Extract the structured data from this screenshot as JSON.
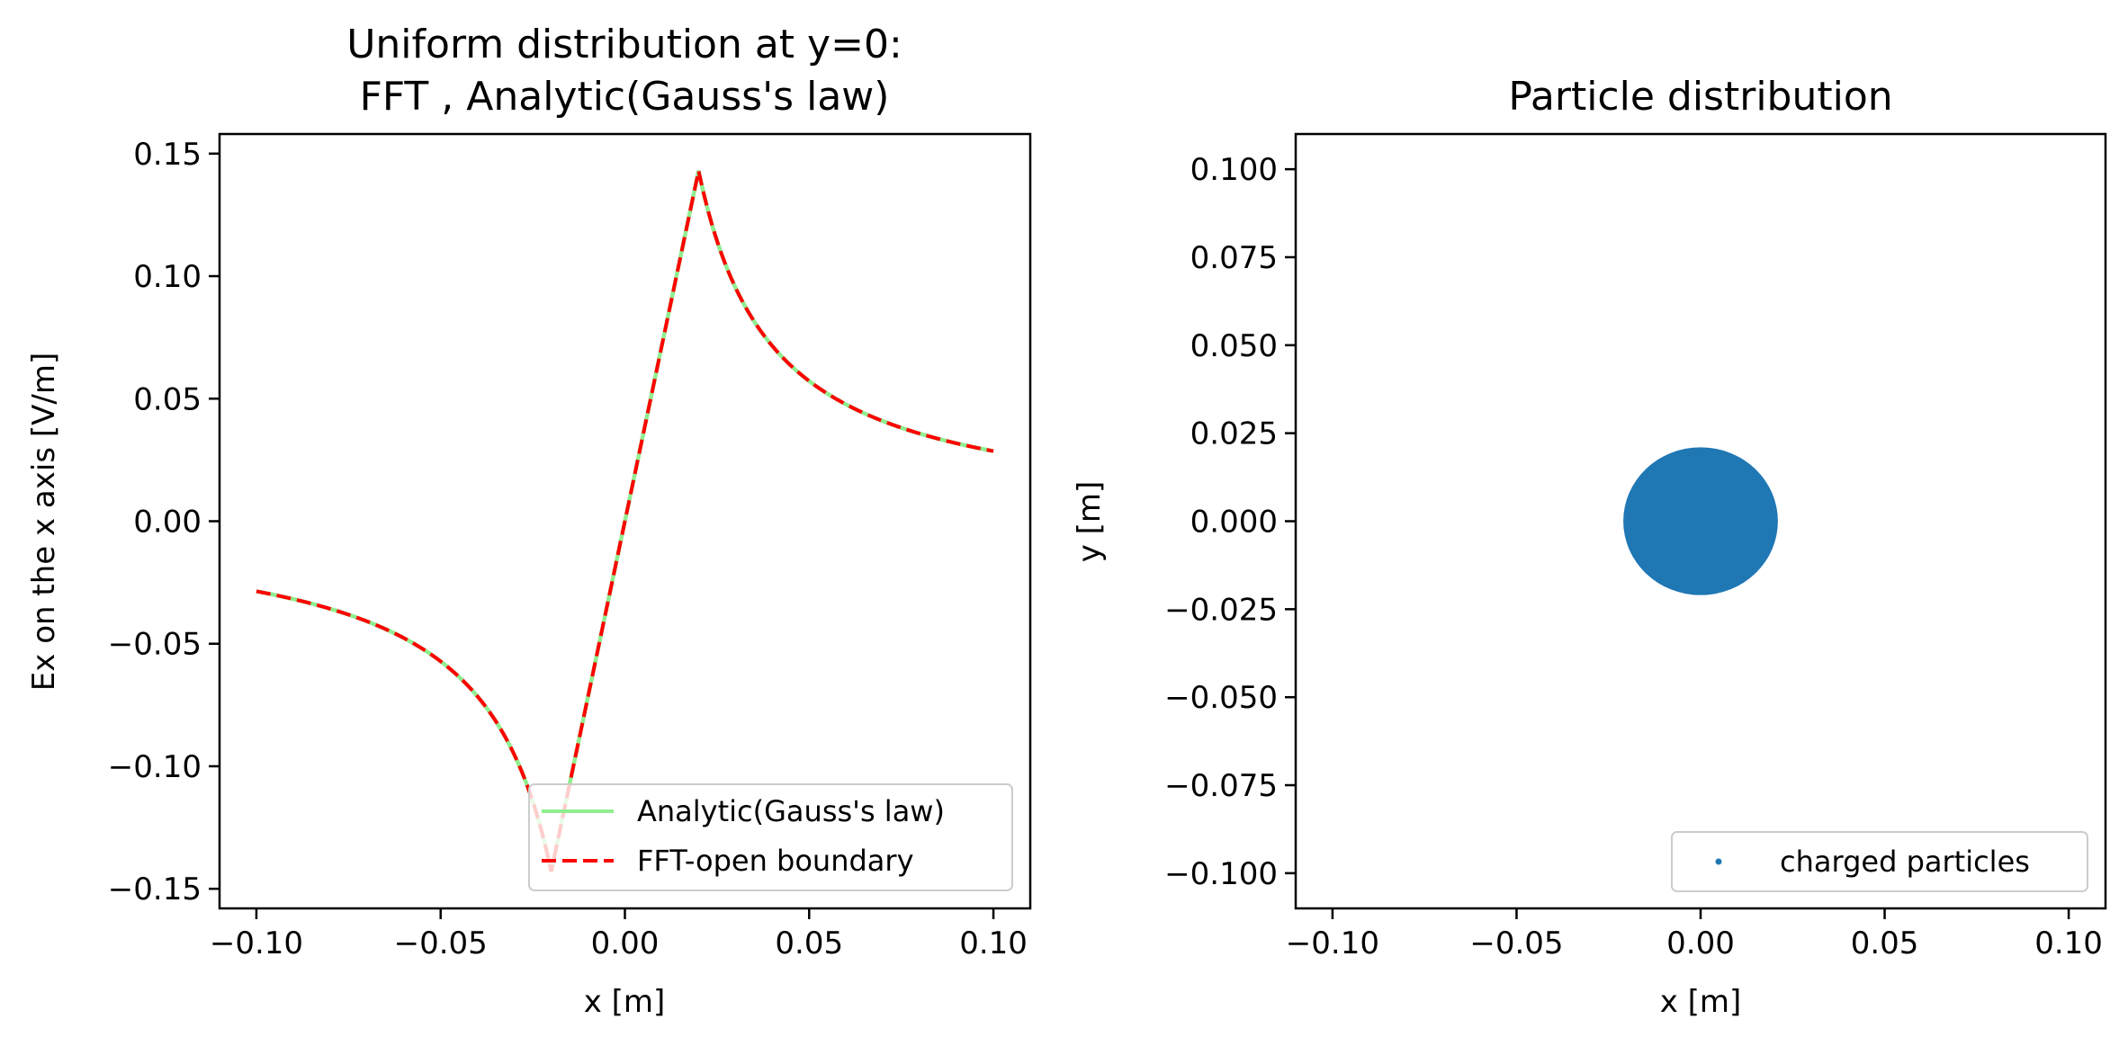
{
  "chart_data": [
    {
      "type": "line",
      "title_lines": [
        "Uniform distribution at y=0:",
        "FFT , Analytic(Gauss's law)"
      ],
      "xlabel": "x [m]",
      "ylabel": "Ex on the x axis [V/m]",
      "xlim": [
        -0.11,
        0.11
      ],
      "ylim": [
        -0.158,
        0.158
      ],
      "xticks": [
        -0.1,
        -0.05,
        0.0,
        0.05,
        0.1
      ],
      "xtick_labels": [
        "−0.10",
        "−0.05",
        "0.00",
        "0.05",
        "0.10"
      ],
      "yticks": [
        -0.15,
        -0.1,
        -0.05,
        0.0,
        0.05,
        0.1,
        0.15
      ],
      "ytick_labels": [
        "−0.15",
        "−0.10",
        "−0.05",
        "0.00",
        "0.05",
        "0.10",
        "0.15"
      ],
      "legend_position": "lower-right",
      "model": {
        "radius": 0.02,
        "e_max": 0.143
      },
      "series": [
        {
          "name": "Analytic(Gauss's law)",
          "color": "#90ee90",
          "style": "solid"
        },
        {
          "name": "FFT-open boundary",
          "color": "#ff0000",
          "style": "dashed"
        }
      ]
    },
    {
      "type": "scatter",
      "title": "Particle distribution",
      "xlabel": "x [m]",
      "ylabel": "y [m]",
      "xlim": [
        -0.11,
        0.11
      ],
      "ylim": [
        -0.11,
        0.11
      ],
      "xticks": [
        -0.1,
        -0.05,
        0.0,
        0.05,
        0.1
      ],
      "xtick_labels": [
        "−0.10",
        "−0.05",
        "0.00",
        "0.05",
        "0.10"
      ],
      "yticks": [
        -0.1,
        -0.075,
        -0.05,
        -0.025,
        0.0,
        0.025,
        0.05,
        0.075,
        0.1
      ],
      "ytick_labels": [
        "−0.100",
        "−0.075",
        "−0.050",
        "−0.025",
        "0.000",
        "0.025",
        "0.050",
        "0.075",
        "0.100"
      ],
      "legend_position": "lower-right",
      "distribution": {
        "center": [
          0,
          0
        ],
        "radius": 0.021
      },
      "series": [
        {
          "name": "charged particles",
          "color": "#1f77b4"
        }
      ]
    }
  ]
}
